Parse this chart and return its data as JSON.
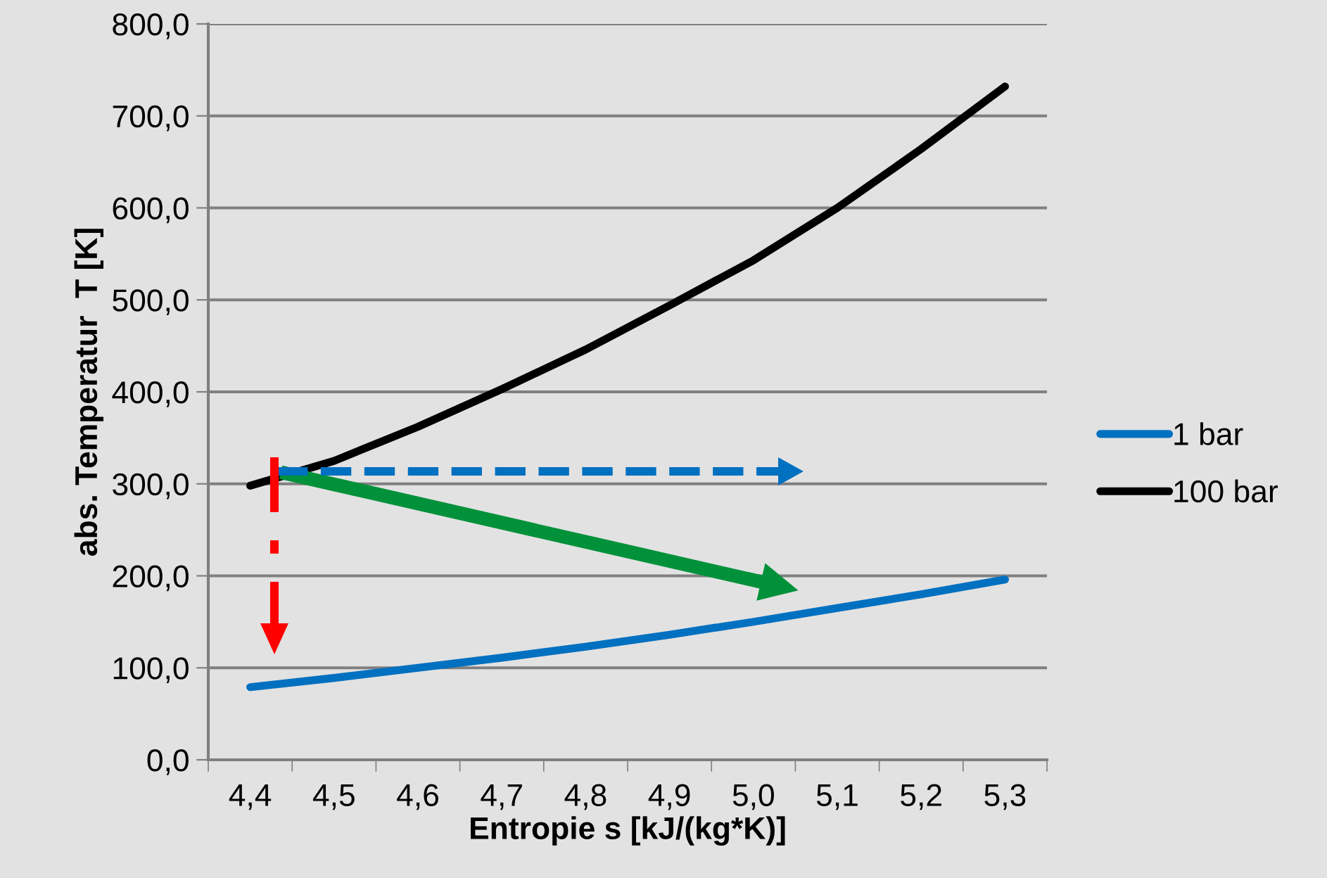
{
  "chart_data": {
    "type": "line",
    "xlabel": "Entropie s [kJ/(kg*K)]",
    "ylabel": "abs. Temperatur  T [K]",
    "categories": [
      "4,4",
      "4,5",
      "4,6",
      "4,7",
      "4,8",
      "4,9",
      "5,0",
      "5,1",
      "5,2",
      "5,3"
    ],
    "series": [
      {
        "name": "1 bar",
        "color": "#0070c0",
        "values": [
          79,
          89,
          100,
          111,
          123,
          136,
          150,
          165,
          180,
          196
        ]
      },
      {
        "name": "100 bar",
        "color": "#000000",
        "values": [
          298,
          325,
          362,
          403,
          446,
          494,
          543,
          600,
          664,
          732
        ]
      }
    ],
    "ylim": [
      0,
      800
    ],
    "yticks": [
      {
        "value": 0,
        "label": "0,0"
      },
      {
        "value": 100,
        "label": "100,0"
      },
      {
        "value": 200,
        "label": "200,0"
      },
      {
        "value": 300,
        "label": "300,0"
      },
      {
        "value": 400,
        "label": "400,0"
      },
      {
        "value": 500,
        "label": "500,0"
      },
      {
        "value": 600,
        "label": "600,0"
      },
      {
        "value": 700,
        "label": "700,0"
      },
      {
        "value": 800,
        "label": "800,0"
      }
    ],
    "grid": "y",
    "legend": "right",
    "marker": "none",
    "line_style": "solid"
  }
}
